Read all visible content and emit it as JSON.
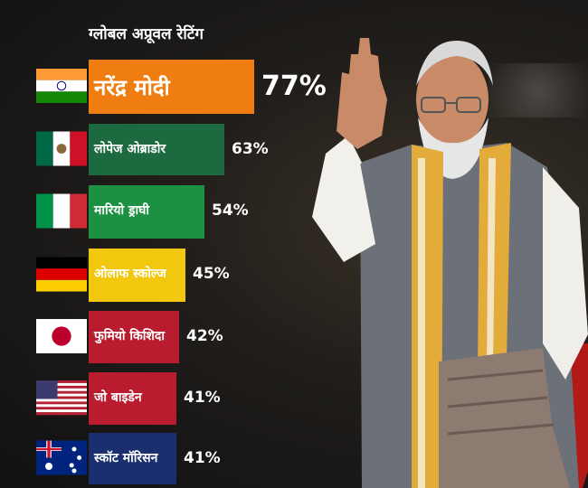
{
  "chart_data": {
    "type": "bar",
    "orientation": "horizontal",
    "title": "ग्लोबल अप्रूवल रेटिंग",
    "categories": [
      "नरेंद्र मोदी",
      "लोपेज ओब्राडोर",
      "मारियो ड्राघी",
      "ओलाफ स्कोल्ज",
      "फुमियो किशिदा",
      "जो बाइडेन",
      "स्कॉट मॉरिसन"
    ],
    "values": [
      77,
      63,
      54,
      45,
      42,
      41,
      41
    ],
    "value_labels": [
      "77%",
      "63%",
      "54%",
      "45%",
      "42%",
      "41%",
      "41%"
    ],
    "bar_colors": [
      "#f07d12",
      "#1e6a40",
      "#1d9142",
      "#f2c80f",
      "#b81c2e",
      "#b81c2e",
      "#1b2f6e"
    ],
    "flags": [
      "india-flag",
      "mexico-flag",
      "italy-flag",
      "germany-flag",
      "japan-flag",
      "usa-flag",
      "australia-flag"
    ],
    "xlim": [
      0,
      77
    ],
    "grid": false,
    "legend": "none"
  }
}
